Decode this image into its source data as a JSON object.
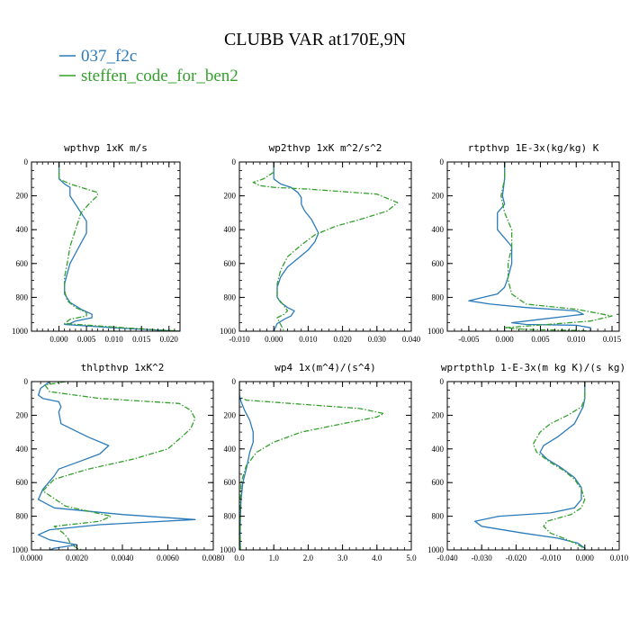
{
  "title": "CLUBB VAR at170E,9N",
  "legend": [
    {
      "label": "037_f2c",
      "color": "#2b7bba"
    },
    {
      "label": "steffen_code_for_ben2",
      "color": "#33a02c"
    }
  ],
  "chart_data": [
    {
      "type": "line",
      "title": "wpthvp  1xK m/s",
      "xlim": [
        -0.005,
        0.022
      ],
      "xticks": [
        0.0,
        0.005,
        0.01,
        0.015,
        0.02
      ],
      "xticklabels": [
        "0.000",
        "0.005",
        "0.010",
        "0.015",
        "0.020"
      ],
      "ylim": [
        1000,
        0
      ],
      "yticks": [
        0,
        200,
        400,
        600,
        800,
        1000
      ],
      "yticklabels": [
        "0",
        "200",
        "400",
        "600",
        "800",
        "1000"
      ],
      "series": [
        {
          "name": "037_f2c",
          "color": "#2b7bba",
          "dashed": false,
          "x": [
            0.0,
            0.0,
            0.0,
            0.001,
            0.002,
            0.002,
            0.003,
            0.004,
            0.005,
            0.005,
            0.004,
            0.003,
            0.002,
            0.0015,
            0.001,
            0.001,
            0.002,
            0.004,
            0.006,
            0.006,
            0.003,
            0.002,
            0.001,
            0.01,
            0.022
          ],
          "y": [
            0,
            50,
            100,
            130,
            150,
            200,
            250,
            300,
            350,
            420,
            480,
            540,
            600,
            660,
            720,
            780,
            830,
            870,
            900,
            920,
            940,
            955,
            960,
            980,
            1000
          ]
        },
        {
          "name": "steffen_code_for_ben2",
          "color": "#33a02c",
          "dashed": true,
          "x": [
            0.0,
            0.0,
            0.0,
            0.002,
            0.005,
            0.007,
            0.007,
            0.006,
            0.004,
            0.003,
            0.002,
            0.0015,
            0.001,
            0.001,
            0.0015,
            0.003,
            0.005,
            0.005,
            0.002,
            0.001,
            0.012,
            0.022
          ],
          "y": [
            0,
            50,
            100,
            130,
            160,
            180,
            200,
            230,
            300,
            400,
            500,
            600,
            680,
            760,
            820,
            860,
            890,
            910,
            930,
            955,
            980,
            1000
          ]
        }
      ]
    },
    {
      "type": "line",
      "title": "wp2thvp  1xK m^2/s^2",
      "xlim": [
        -0.01,
        0.04
      ],
      "xticks": [
        -0.01,
        0.0,
        0.01,
        0.02,
        0.03,
        0.04
      ],
      "xticklabels": [
        "-0.010",
        "0.000",
        "0.010",
        "0.020",
        "0.030",
        "0.040"
      ],
      "ylim": [
        1000,
        0
      ],
      "yticks": [
        0,
        200,
        400,
        600,
        800,
        1000
      ],
      "yticklabels": [
        "0",
        "200",
        "400",
        "600",
        "800",
        "1000"
      ],
      "series": [
        {
          "name": "037_f2c",
          "color": "#2b7bba",
          "dashed": false,
          "x": [
            0.0,
            0.0,
            0.0,
            0.002,
            0.005,
            0.007,
            0.008,
            0.008,
            0.009,
            0.011,
            0.013,
            0.012,
            0.01,
            0.007,
            0.004,
            0.002,
            0.001,
            0.001,
            0.002,
            0.004,
            0.006,
            0.005,
            0.003,
            0.001,
            0.0
          ],
          "y": [
            0,
            50,
            100,
            130,
            150,
            180,
            210,
            250,
            290,
            340,
            420,
            470,
            520,
            570,
            620,
            680,
            740,
            800,
            830,
            860,
            880,
            910,
            930,
            955,
            1000
          ]
        },
        {
          "name": "steffen_code_for_ben2",
          "color": "#33a02c",
          "dashed": true,
          "x": [
            0.0,
            0.0,
            -0.003,
            -0.006,
            -0.004,
            0.0,
            0.01,
            0.03,
            0.036,
            0.033,
            0.025,
            0.018,
            0.012,
            0.008,
            0.004,
            0.002,
            0.001,
            0.001,
            0.003,
            0.004,
            0.003,
            0.001,
            0.002,
            0.003
          ],
          "y": [
            0,
            60,
            100,
            120,
            140,
            150,
            160,
            190,
            240,
            290,
            340,
            380,
            430,
            490,
            560,
            640,
            720,
            800,
            850,
            880,
            900,
            920,
            960,
            1000
          ]
        }
      ]
    },
    {
      "type": "line",
      "title": "rtpthvp  1E-3x(kg/kg) K",
      "xlim": [
        -0.008,
        0.016
      ],
      "xticks": [
        -0.005,
        0.0,
        0.005,
        0.01,
        0.015
      ],
      "xticklabels": [
        "-0.005",
        "0.000",
        "0.005",
        "0.010",
        "0.015"
      ],
      "ylim": [
        1000,
        0
      ],
      "yticks": [
        0,
        200,
        400,
        600,
        800,
        1000
      ],
      "yticklabels": [
        "0",
        "200",
        "400",
        "600",
        "800",
        "1000"
      ],
      "series": [
        {
          "name": "037_f2c",
          "color": "#2b7bba",
          "dashed": false,
          "x": [
            0.0,
            0.0,
            -0.0003,
            0.0,
            -0.001,
            -0.001,
            0.0,
            0.001,
            0.001,
            0.0005,
            0.0,
            -0.001,
            -0.003,
            -0.005,
            -0.002,
            0.003,
            0.01,
            0.011,
            0.005,
            0.001,
            0.003,
            0.01,
            0.012,
            0.012
          ],
          "y": [
            0,
            100,
            200,
            250,
            300,
            400,
            450,
            500,
            600,
            680,
            740,
            780,
            800,
            820,
            840,
            860,
            880,
            900,
            930,
            950,
            960,
            965,
            980,
            1000
          ]
        },
        {
          "name": "steffen_code_for_ben2",
          "color": "#33a02c",
          "dashed": true,
          "x": [
            0.0,
            0.0,
            -0.0005,
            0.0,
            0.001,
            0.001,
            0.0005,
            0.0005,
            0.001,
            0.003,
            0.01,
            0.015,
            0.012,
            0.006,
            0.0,
            0.003,
            0.01,
            0.012
          ],
          "y": [
            0,
            100,
            200,
            300,
            400,
            500,
            600,
            700,
            780,
            840,
            870,
            910,
            940,
            960,
            980,
            990,
            995,
            1000
          ]
        }
      ]
    },
    {
      "type": "line",
      "title": "thlpthvp  1xK^2",
      "xlim": [
        0,
        0.008
      ],
      "xticks": [
        0.0,
        0.002,
        0.004,
        0.006,
        0.008
      ],
      "xticklabels": [
        "0.0000",
        "0.0020",
        "0.0040",
        "0.0060",
        "0.0080"
      ],
      "ylim": [
        1000,
        0
      ],
      "yticks": [
        0,
        200,
        400,
        600,
        800,
        1000
      ],
      "yticklabels": [
        "0",
        "200",
        "400",
        "600",
        "800",
        "1000"
      ],
      "series": [
        {
          "name": "037_f2c",
          "color": "#2b7bba",
          "dashed": false,
          "x": [
            0.0008,
            0.0004,
            0.0003,
            0.0005,
            0.0012,
            0.0013,
            0.0012,
            0.0013,
            0.0025,
            0.0034,
            0.003,
            0.002,
            0.0012,
            0.001,
            0.0005,
            0.0003,
            0.001,
            0.004,
            0.0072,
            0.003,
            0.0008,
            0.0003,
            0.0008,
            0.002,
            0.001,
            0.0008
          ],
          "y": [
            0,
            40,
            80,
            100,
            120,
            150,
            180,
            250,
            330,
            380,
            430,
            480,
            520,
            560,
            640,
            700,
            750,
            790,
            820,
            850,
            880,
            910,
            940,
            970,
            990,
            1000
          ]
        },
        {
          "name": "steffen_code_for_ben2",
          "color": "#33a02c",
          "dashed": true,
          "x": [
            0.0015,
            0.0006,
            0.0008,
            0.003,
            0.0065,
            0.007,
            0.0072,
            0.007,
            0.0066,
            0.006,
            0.0045,
            0.0025,
            0.001,
            0.0005,
            0.0015,
            0.0035,
            0.003,
            0.001,
            0.0014,
            0.0016,
            0.0017,
            0.002,
            0.0022
          ],
          "y": [
            0,
            20,
            60,
            100,
            130,
            170,
            220,
            280,
            330,
            400,
            460,
            520,
            580,
            650,
            740,
            800,
            830,
            860,
            900,
            930,
            960,
            990,
            1000
          ]
        }
      ]
    },
    {
      "type": "line",
      "title": "wp4  1x(m^4)/(s^4)",
      "xlim": [
        0,
        5.0
      ],
      "xticks": [
        0.0,
        1.0,
        2.0,
        3.0,
        4.0,
        5.0
      ],
      "xticklabels": [
        "0.0",
        "1.0",
        "2.0",
        "3.0",
        "4.0",
        "5.0"
      ],
      "ylim": [
        1000,
        0
      ],
      "yticks": [
        0,
        200,
        400,
        600,
        800,
        1000
      ],
      "yticklabels": [
        "0",
        "200",
        "400",
        "600",
        "800",
        "1000"
      ],
      "series": [
        {
          "name": "037_f2c",
          "color": "#2b7bba",
          "dashed": false,
          "x": [
            0.0,
            0.0,
            0.05,
            0.15,
            0.3,
            0.4,
            0.4,
            0.3,
            0.25,
            0.2,
            0.1,
            0.05,
            0.03,
            0.02,
            0.02,
            0.03
          ],
          "y": [
            0,
            80,
            120,
            170,
            230,
            300,
            360,
            420,
            470,
            520,
            600,
            700,
            800,
            900,
            950,
            1000
          ]
        },
        {
          "name": "steffen_code_for_ben2",
          "color": "#33a02c",
          "dashed": true,
          "x": [
            0.0,
            0.0,
            0.2,
            1.5,
            3.5,
            4.2,
            4.0,
            3.0,
            1.8,
            1.0,
            0.5,
            0.2,
            0.05,
            0.02,
            0.02,
            0.03
          ],
          "y": [
            0,
            90,
            110,
            130,
            160,
            190,
            210,
            250,
            300,
            360,
            420,
            500,
            600,
            750,
            900,
            1000
          ]
        }
      ]
    },
    {
      "type": "line",
      "title": "wprtpthlp  1-E-3x(m kg K)/(s kg)",
      "xlim": [
        -0.04,
        0.01
      ],
      "xticks": [
        -0.04,
        -0.03,
        -0.02,
        -0.01,
        0.0,
        0.01
      ],
      "xticklabels": [
        "-0.040",
        "-0.030",
        "-0.020",
        "-0.010",
        "0.000",
        "0.010"
      ],
      "ylim": [
        1000,
        0
      ],
      "yticks": [
        0,
        200,
        400,
        600,
        800,
        1000
      ],
      "yticklabels": [
        "0",
        "200",
        "400",
        "600",
        "800",
        "1000"
      ],
      "series": [
        {
          "name": "037_f2c",
          "color": "#2b7bba",
          "dashed": false,
          "x": [
            0.0,
            0.0,
            -0.0005,
            -0.003,
            -0.008,
            -0.012,
            -0.013,
            -0.011,
            -0.007,
            -0.003,
            -0.001,
            -0.001,
            -0.003,
            -0.01,
            -0.025,
            -0.032,
            -0.03,
            -0.018,
            -0.008,
            -0.002,
            0.0,
            0.0
          ],
          "y": [
            0,
            100,
            150,
            250,
            330,
            380,
            420,
            460,
            510,
            570,
            630,
            700,
            750,
            780,
            800,
            830,
            860,
            900,
            930,
            960,
            990,
            1000
          ]
        },
        {
          "name": "steffen_code_for_ben2",
          "color": "#33a02c",
          "dashed": true,
          "x": [
            0.0,
            0.0,
            -0.001,
            -0.005,
            -0.01,
            -0.013,
            -0.015,
            -0.014,
            -0.01,
            -0.006,
            -0.003,
            -0.001,
            0.0,
            -0.001,
            -0.004,
            -0.011,
            -0.012,
            -0.01,
            -0.005,
            -0.001,
            0.0
          ],
          "y": [
            0,
            100,
            150,
            200,
            250,
            300,
            370,
            420,
            480,
            530,
            580,
            640,
            700,
            750,
            790,
            830,
            860,
            900,
            940,
            980,
            1000
          ]
        }
      ]
    }
  ]
}
